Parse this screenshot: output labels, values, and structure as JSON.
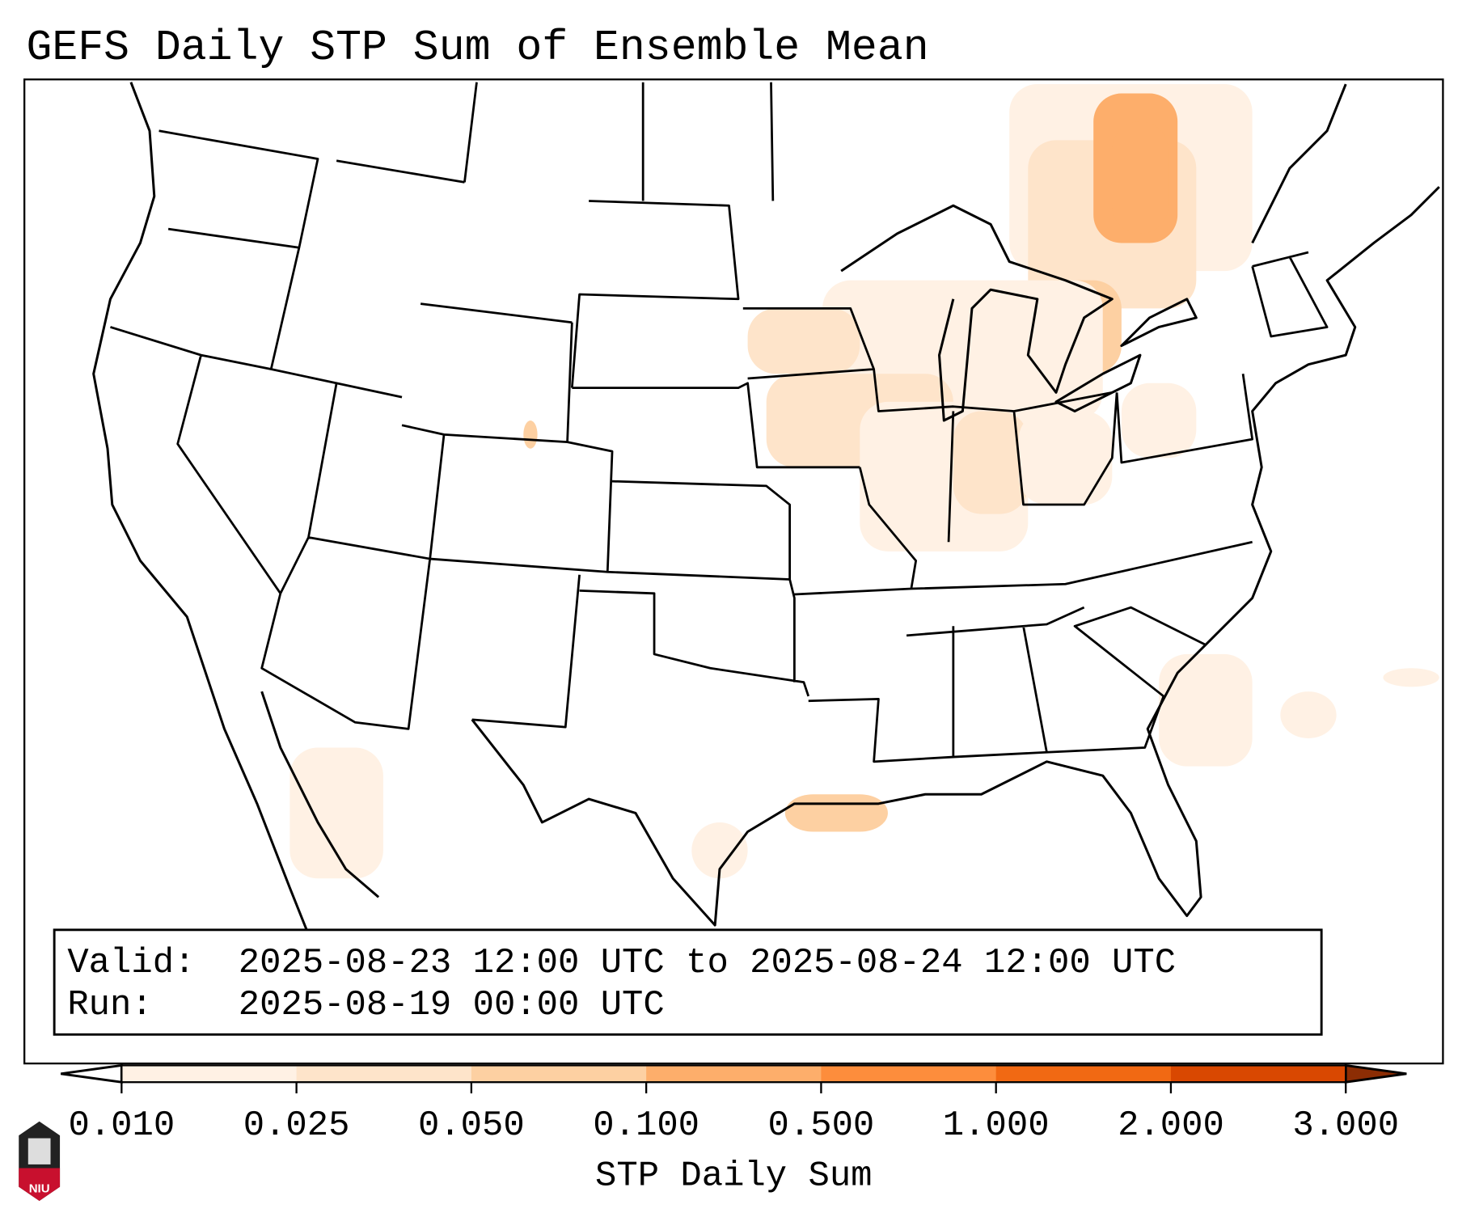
{
  "title": "GEFS Daily STP Sum of Ensemble Mean",
  "info_box": {
    "valid_label": "Valid:",
    "valid_value": "2025-08-23 12:00 UTC to 2025-08-24 12:00 UTC",
    "run_label": "Run:",
    "run_value": "2025-08-19 00:00 UTC"
  },
  "colorbar": {
    "label": "STP Daily Sum",
    "ticks": [
      "0.010",
      "0.025",
      "0.050",
      "0.100",
      "0.500",
      "1.000",
      "2.000",
      "3.000"
    ],
    "colors": [
      "#fff1e4",
      "#fee4ca",
      "#fdd0a2",
      "#fdae6b",
      "#fd8d3c",
      "#f16913",
      "#d94801"
    ],
    "under_color": "#ffffff",
    "over_color": "#8c2d04"
  },
  "logo": {
    "text": "NIU"
  },
  "palette": {
    "light": "#fff1e4",
    "light2": "#fee4ca",
    "mid": "#fdd0a2",
    "strong": "#fdae6b"
  }
}
